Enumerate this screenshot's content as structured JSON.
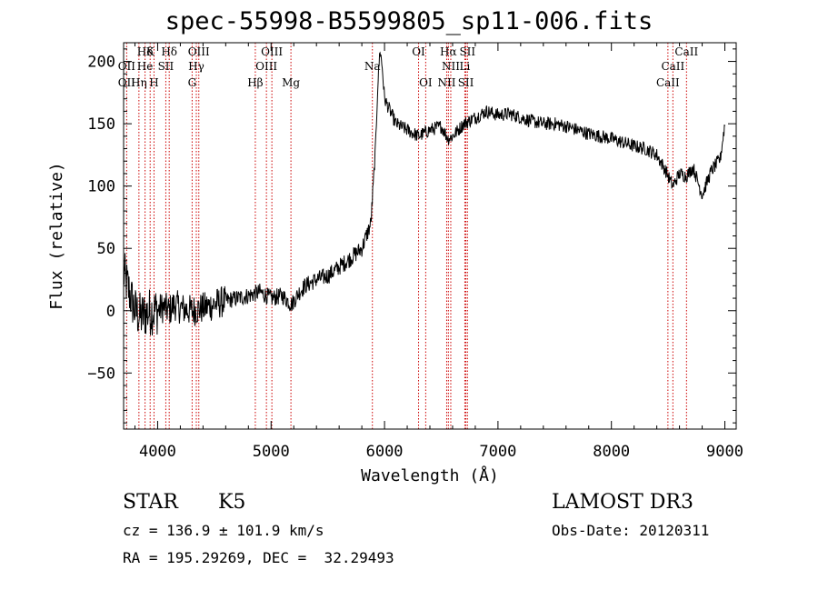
{
  "chart_data": {
    "type": "line",
    "title": "spec-55998-B5599805_sp11-006.fits",
    "xlabel": "Wavelength (Å)",
    "ylabel": "Flux (relative)",
    "xlim": [
      3700,
      9100
    ],
    "ylim": [
      -95,
      215
    ],
    "xticks": [
      4000,
      5000,
      6000,
      7000,
      8000,
      9000
    ],
    "yticks": [
      -50,
      0,
      50,
      100,
      150,
      200
    ],
    "line_color": "#000000",
    "marker_color": "#cc0000",
    "spectrum_anchors": {
      "wavelength": [
        3700,
        3750,
        3800,
        3850,
        3900,
        3950,
        4000,
        4050,
        4100,
        4150,
        4200,
        4300,
        4400,
        4500,
        4600,
        4700,
        4800,
        4900,
        5000,
        5100,
        5180,
        5250,
        5300,
        5400,
        5500,
        5600,
        5700,
        5800,
        5880,
        5900,
        5920,
        5940,
        5960,
        5980,
        6000,
        6050,
        6100,
        6200,
        6300,
        6400,
        6500,
        6560,
        6600,
        6700,
        6800,
        6900,
        7000,
        7100,
        7200,
        7300,
        7400,
        7500,
        7600,
        7700,
        7800,
        7900,
        8000,
        8100,
        8200,
        8300,
        8400,
        8480,
        8540,
        8600,
        8660,
        8720,
        8800,
        8880,
        8960,
        9000
      ],
      "flux": [
        30,
        15,
        0,
        -5,
        -2,
        0,
        0,
        3,
        0,
        5,
        2,
        0,
        2,
        5,
        8,
        10,
        12,
        15,
        10,
        12,
        5,
        15,
        20,
        25,
        28,
        35,
        42,
        50,
        70,
        100,
        130,
        180,
        210,
        195,
        170,
        160,
        150,
        145,
        140,
        145,
        148,
        138,
        140,
        150,
        155,
        160,
        157,
        158,
        155,
        152,
        150,
        150,
        148,
        145,
        142,
        140,
        138,
        135,
        132,
        130,
        125,
        112,
        100,
        110,
        108,
        115,
        93,
        112,
        122,
        150
      ]
    },
    "lines": [
      {
        "label": "Hδ",
        "wave": 3889,
        "row": 1
      },
      {
        "label": "K",
        "wave": 3934,
        "row": 1
      },
      {
        "label": "Hδ",
        "wave": 4102,
        "row": 1
      },
      {
        "label": "OIII",
        "wave": 4363,
        "row": 1
      },
      {
        "label": "OIII",
        "wave": 5007,
        "row": 1
      },
      {
        "label": "OI",
        "wave": 6300,
        "row": 1
      },
      {
        "label": "Hα",
        "wave": 6563,
        "row": 1
      },
      {
        "label": "SII",
        "wave": 6731,
        "row": 1
      },
      {
        "label": "CaII",
        "wave": 8662,
        "row": 1
      },
      {
        "label": "OII",
        "wave": 3727,
        "row": 2
      },
      {
        "label": "He",
        "wave": 3889,
        "row": 2
      },
      {
        "label": "SII",
        "wave": 4072,
        "row": 2
      },
      {
        "label": "Hγ",
        "wave": 4341,
        "row": 2
      },
      {
        "label": "OIII",
        "wave": 4959,
        "row": 2
      },
      {
        "label": "Na",
        "wave": 5893,
        "row": 2
      },
      {
        "label": "NII",
        "wave": 6584,
        "row": 2
      },
      {
        "label": "Li",
        "wave": 6708,
        "row": 2
      },
      {
        "label": "CaII",
        "wave": 8542,
        "row": 2
      },
      {
        "label": "OII",
        "wave": 3727,
        "row": 3
      },
      {
        "label": "Hη",
        "wave": 3835,
        "row": 3
      },
      {
        "label": "H",
        "wave": 3968,
        "row": 3
      },
      {
        "label": "G",
        "wave": 4304,
        "row": 3
      },
      {
        "label": "Hβ",
        "wave": 4861,
        "row": 3
      },
      {
        "label": "Mg",
        "wave": 5175,
        "row": 3
      },
      {
        "label": "OI",
        "wave": 6363,
        "row": 3
      },
      {
        "label": "NII",
        "wave": 6548,
        "row": 3
      },
      {
        "label": "SII",
        "wave": 6717,
        "row": 3
      },
      {
        "label": "CaII",
        "wave": 8498,
        "row": 3
      }
    ],
    "marker_waves": [
      3727,
      3835,
      3889,
      3934,
      3968,
      4072,
      4102,
      4304,
      4341,
      4363,
      4861,
      4959,
      5007,
      5175,
      5893,
      6300,
      6363,
      6548,
      6563,
      6584,
      6708,
      6717,
      6731,
      8498,
      8542,
      8662
    ]
  },
  "info": {
    "class_label": "STAR",
    "subclass": "K5",
    "survey": "LAMOST DR3",
    "cz": "cz = 136.9 ± 101.9 km/s",
    "obs_date": "Obs-Date: 20120311",
    "coords": "RA = 195.29269, DEC =  32.29493"
  }
}
